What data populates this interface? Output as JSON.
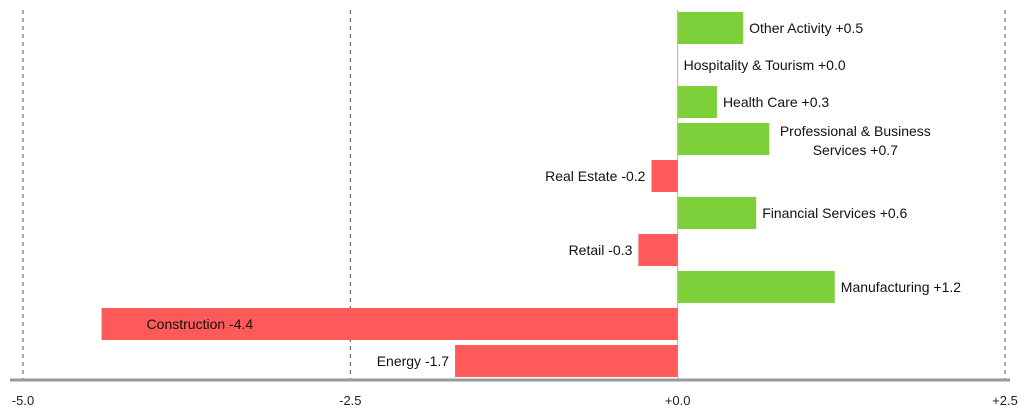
{
  "chart_data": {
    "type": "bar",
    "orientation": "horizontal",
    "xlim": [
      -5.0,
      2.5
    ],
    "x_ticks": [
      "-5.0",
      "-2.5",
      "+0.0",
      "+2.5"
    ],
    "x_tick_values": [
      -5.0,
      -2.5,
      0.0,
      2.5
    ],
    "grid": "vertical dashed",
    "categories": [
      "Other Activity",
      "Hospitality & Tourism",
      "Health Care",
      "Professional & Business Services",
      "Real Estate",
      "Financial Services",
      "Retail",
      "Manufacturing",
      "Construction",
      "Energy"
    ],
    "values": [
      0.5,
      0.0,
      0.3,
      0.7,
      -0.2,
      0.6,
      -0.3,
      1.2,
      -4.4,
      -1.7
    ],
    "labels": [
      [
        "Other Activity +0.5"
      ],
      [
        "Hospitality & Tourism +0.0"
      ],
      [
        "Health Care +0.3"
      ],
      [
        "Professional & Business",
        "Services +0.7"
      ],
      [
        "Real Estate -0.2"
      ],
      [
        "Financial Services +0.6"
      ],
      [
        "Retail -0.3"
      ],
      [
        "Manufacturing +1.2"
      ],
      [
        "Construction -4.4"
      ],
      [
        "Energy -1.7"
      ]
    ],
    "colors": {
      "positive": "#7ED03B",
      "negative": "#FF5A5A",
      "grid": "#555555",
      "axis": "#9a9a9a"
    }
  }
}
